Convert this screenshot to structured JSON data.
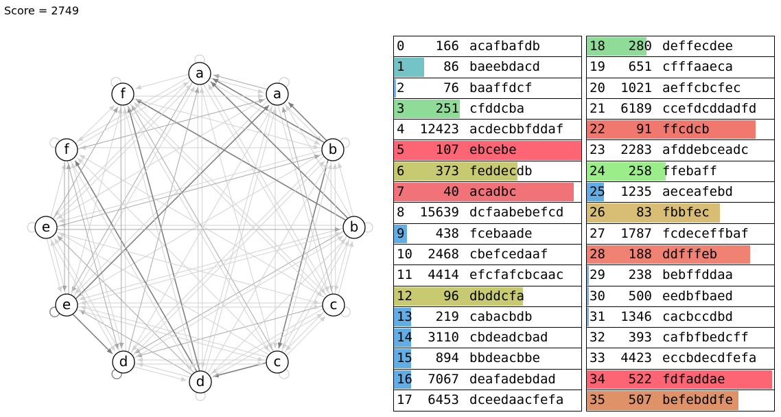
{
  "score": "Score = 2749",
  "graph": {
    "nodes": [
      "a",
      "a",
      "b",
      "b",
      "c",
      "c",
      "d",
      "d",
      "e",
      "e",
      "f",
      "f"
    ]
  },
  "table_left": [
    {
      "index": "0",
      "value": "166",
      "string": "acafbafdb",
      "fill": 0,
      "color": ""
    },
    {
      "index": "1",
      "value": "86",
      "string": "baeebdacd",
      "fill": 0.16,
      "color": "#74c4c7"
    },
    {
      "index": "2",
      "value": "76",
      "string": "baaffdcf",
      "fill": 0.01,
      "color": "#7bb3e6"
    },
    {
      "index": "3",
      "value": "251",
      "string": "cfddcba",
      "fill": 0.35,
      "color": "#8fdc98"
    },
    {
      "index": "4",
      "value": "12423",
      "string": "acdecbbfddaf",
      "fill": 0,
      "color": ""
    },
    {
      "index": "5",
      "value": "107",
      "string": "ebcebe",
      "fill": 1,
      "color": "#fd6575"
    },
    {
      "index": "6",
      "value": "373",
      "string": "feddecdb",
      "fill": 0.66,
      "color": "#c7ca71"
    },
    {
      "index": "7",
      "value": "40",
      "string": "acadbc",
      "fill": 0.96,
      "color": "#f2727a"
    },
    {
      "index": "8",
      "value": "15639",
      "string": "dcfaabebefcd",
      "fill": 0,
      "color": ""
    },
    {
      "index": "9",
      "value": "438",
      "string": "fcebaade",
      "fill": 0.07,
      "color": "#62aee4"
    },
    {
      "index": "10",
      "value": "2468",
      "string": "cbefcedaaf",
      "fill": 0,
      "color": ""
    },
    {
      "index": "11",
      "value": "4414",
      "string": "efcfafcbcaac",
      "fill": 0,
      "color": ""
    },
    {
      "index": "12",
      "value": "96",
      "string": "dbddcfa",
      "fill": 0.69,
      "color": "#c7ca71"
    },
    {
      "index": "13",
      "value": "219",
      "string": "cabacbdb",
      "fill": 0.09,
      "color": "#62aee4"
    },
    {
      "index": "14",
      "value": "3110",
      "string": "cbdeadcbad",
      "fill": 0.09,
      "color": "#62aee4"
    },
    {
      "index": "15",
      "value": "894",
      "string": "bbdeacbbe",
      "fill": 0.09,
      "color": "#62aee4"
    },
    {
      "index": "16",
      "value": "7067",
      "string": "deafadebdad",
      "fill": 0.09,
      "color": "#62aee4"
    },
    {
      "index": "17",
      "value": "6453",
      "string": "dceedaacfefa",
      "fill": 0,
      "color": ""
    }
  ],
  "table_right": [
    {
      "index": "18",
      "value": "280",
      "string": "deffecdee",
      "fill": 0.32,
      "color": "#8fdc98"
    },
    {
      "index": "19",
      "value": "651",
      "string": "cfffaaeca",
      "fill": 0,
      "color": ""
    },
    {
      "index": "20",
      "value": "1021",
      "string": "aeffcbcfec",
      "fill": 0,
      "color": ""
    },
    {
      "index": "21",
      "value": "6189",
      "string": "ccefdcddadfd",
      "fill": 0,
      "color": ""
    },
    {
      "index": "22",
      "value": "91",
      "string": "ffcdcb",
      "fill": 0.9,
      "color": "#f0786e"
    },
    {
      "index": "23",
      "value": "2283",
      "string": "afddebceadc",
      "fill": 0,
      "color": ""
    },
    {
      "index": "24",
      "value": "258",
      "string": "ffebaff",
      "fill": 0.42,
      "color": "#9bed89"
    },
    {
      "index": "25",
      "value": "1235",
      "string": "aeceafebd",
      "fill": 0.09,
      "color": "#62aee4"
    },
    {
      "index": "26",
      "value": "83",
      "string": "fbbfec",
      "fill": 0.71,
      "color": "#d7be74"
    },
    {
      "index": "27",
      "value": "1787",
      "string": "fcdeceffbaf",
      "fill": 0,
      "color": ""
    },
    {
      "index": "28",
      "value": "188",
      "string": "ddfffeb",
      "fill": 0.87,
      "color": "#ef8273"
    },
    {
      "index": "29",
      "value": "238",
      "string": "bebffddaa",
      "fill": 0.01,
      "color": "#7bb3e6"
    },
    {
      "index": "30",
      "value": "500",
      "string": "eedbfbaed",
      "fill": 0.01,
      "color": "#7bb3e6"
    },
    {
      "index": "31",
      "value": "1346",
      "string": "cacbccdbd",
      "fill": 0.01,
      "color": "#7bb3e6"
    },
    {
      "index": "32",
      "value": "393",
      "string": "cafbfbedcff",
      "fill": 0,
      "color": ""
    },
    {
      "index": "33",
      "value": "4423",
      "string": "eccbdecdfefa",
      "fill": 0,
      "color": ""
    },
    {
      "index": "34",
      "value": "522",
      "string": "fdfaddae",
      "fill": 0.99,
      "color": "#fd6575"
    },
    {
      "index": "35",
      "value": "507",
      "string": "befebddfe",
      "fill": 0.81,
      "color": "#df9268"
    }
  ]
}
